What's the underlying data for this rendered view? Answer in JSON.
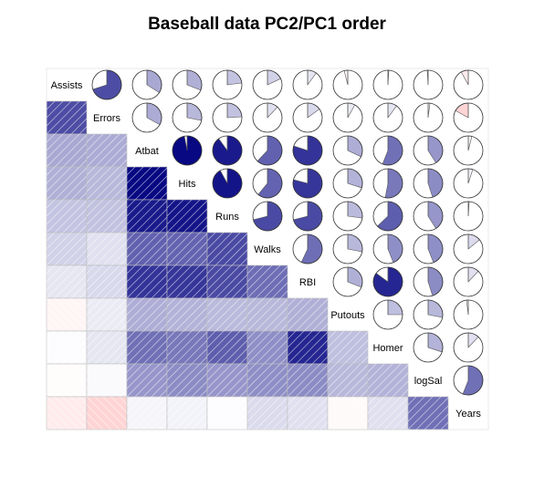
{
  "chart_data": {
    "type": "heatmap",
    "title": "Baseball data PC2/PC1 order",
    "variables": [
      "Assists",
      "Errors",
      "Atbat",
      "Hits",
      "Runs",
      "Walks",
      "RBI",
      "Putouts",
      "Homer",
      "logSal",
      "Years"
    ],
    "lower_panel": "shade",
    "upper_panel": "pie",
    "diagonal": "variable names",
    "color_scale": {
      "negative": "#ff0000",
      "zero": "#ffffff",
      "positive": "#00007f"
    },
    "correlations": [
      [
        1.0,
        0.7,
        0.34,
        0.31,
        0.23,
        0.18,
        0.1,
        -0.04,
        0.01,
        -0.01,
        -0.08
      ],
      [
        0.7,
        1.0,
        0.33,
        0.28,
        0.24,
        0.12,
        0.15,
        0.08,
        0.1,
        0.02,
        -0.17
      ],
      [
        0.34,
        0.33,
        1.0,
        0.97,
        0.9,
        0.62,
        0.8,
        0.32,
        0.56,
        0.41,
        0.04
      ],
      [
        0.31,
        0.28,
        0.97,
        1.0,
        0.92,
        0.61,
        0.79,
        0.3,
        0.53,
        0.45,
        0.05
      ],
      [
        0.23,
        0.24,
        0.9,
        0.92,
        1.0,
        0.71,
        0.71,
        0.27,
        0.63,
        0.41,
        0.01
      ],
      [
        0.18,
        0.12,
        0.62,
        0.61,
        0.71,
        1.0,
        0.57,
        0.28,
        0.44,
        0.44,
        0.14
      ],
      [
        0.1,
        0.15,
        0.8,
        0.79,
        0.71,
        0.57,
        1.0,
        0.31,
        0.85,
        0.45,
        0.12
      ],
      [
        -0.04,
        0.08,
        0.32,
        0.3,
        0.27,
        0.28,
        0.31,
        1.0,
        0.25,
        0.28,
        -0.02
      ],
      [
        0.01,
        0.1,
        0.56,
        0.53,
        0.63,
        0.44,
        0.85,
        0.25,
        1.0,
        0.3,
        0.12
      ],
      [
        -0.01,
        0.02,
        0.41,
        0.45,
        0.41,
        0.44,
        0.45,
        0.28,
        0.3,
        1.0,
        0.56
      ],
      [
        -0.08,
        -0.17,
        0.04,
        0.05,
        0.01,
        0.14,
        0.12,
        -0.02,
        0.12,
        0.56,
        1.0
      ]
    ]
  }
}
